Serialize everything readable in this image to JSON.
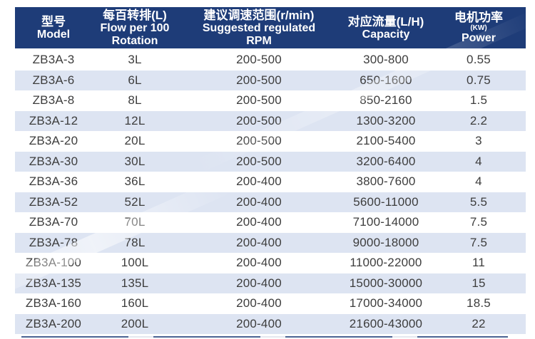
{
  "table": {
    "columns": [
      {
        "key": "model",
        "lines": [
          {
            "text": "型号",
            "cn": true
          },
          {
            "text": "Model"
          }
        ]
      },
      {
        "key": "flow",
        "lines": [
          {
            "text": "每百转排(L)",
            "cn": true
          },
          {
            "text": "Flow per 100"
          },
          {
            "text": "Rotation"
          }
        ]
      },
      {
        "key": "rpm",
        "lines": [
          {
            "text": "建议调速范围(r/min)",
            "cn": true
          },
          {
            "text": "Suggested regulated"
          },
          {
            "text": "RPM"
          }
        ]
      },
      {
        "key": "capacity",
        "lines": [
          {
            "text": "对应流量(L/H)",
            "cn": true
          },
          {
            "text": "Capacity"
          }
        ]
      },
      {
        "key": "power",
        "lines": [
          {
            "text": "电机功率",
            "cn": true
          },
          {
            "text": "(KW)",
            "small": true
          },
          {
            "text": "Power"
          }
        ]
      }
    ],
    "rows": [
      [
        "ZB3A-3",
        "3L",
        "200-500",
        "300-800",
        "0.55"
      ],
      [
        "ZB3A-6",
        "6L",
        "200-500",
        "650-1600",
        "0.75"
      ],
      [
        "ZB3A-8",
        "8L",
        "200-500",
        "850-2160",
        "1.5"
      ],
      [
        "ZB3A-12",
        "12L",
        "200-500",
        "1300-3200",
        "2.2"
      ],
      [
        "ZB3A-20",
        "20L",
        "200-500",
        "2100-5400",
        "3"
      ],
      [
        "ZB3A-30",
        "30L",
        "200-500",
        "3200-6400",
        "4"
      ],
      [
        "ZB3A-36",
        "36L",
        "200-400",
        "3800-7600",
        "4"
      ],
      [
        "ZB3A-52",
        "52L",
        "200-400",
        "5600-11000",
        "5.5"
      ],
      [
        "ZB3A-70",
        "70L",
        "200-400",
        "7100-14000",
        "7.5"
      ],
      [
        "ZB3A-78",
        "78L",
        "200-400",
        "9000-18000",
        "7.5"
      ],
      [
        "ZB3A-100",
        "100L",
        "200-400",
        "11000-22000",
        "11"
      ],
      [
        "ZB3A-135",
        "135L",
        "200-400",
        "15000-30000",
        "15"
      ],
      [
        "ZB3A-160",
        "160L",
        "200-400",
        "17000-34000",
        "18.5"
      ],
      [
        "ZB3A-200",
        "200L",
        "200-400",
        "21600-43000",
        "22"
      ]
    ]
  },
  "colors": {
    "header_bg": "#1e3c78",
    "header_text": "#ffffff",
    "row_alt_bg": "#dde4f2",
    "body_text": "#3d3d3d"
  }
}
